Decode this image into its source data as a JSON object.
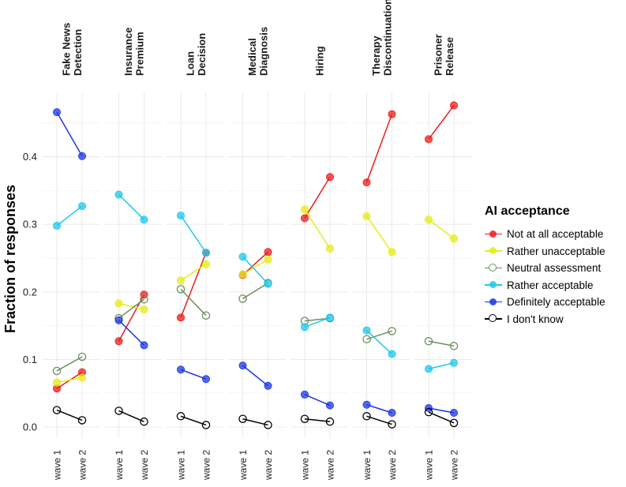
{
  "chart_data": {
    "type": "line",
    "ylabel": "Fraction of responses",
    "xlabel": "",
    "ylim": [
      0,
      0.48
    ],
    "yticks": [
      "0.0",
      "0.1",
      "0.2",
      "0.3",
      "0.4"
    ],
    "ytick_values": [
      0,
      0.1,
      0.2,
      0.3,
      0.4
    ],
    "x": [
      "wave 1",
      "wave 2"
    ],
    "grid": true,
    "legend_position": "right",
    "legend_title": "AI acceptance",
    "series": [
      {
        "name": "Not at all acceptable",
        "color": "#ee1c1c",
        "filled": true
      },
      {
        "name": "Rather unacceptable",
        "color": "#e5ec1a",
        "filled": true
      },
      {
        "name": "Neutral assessment",
        "color": "#6b8f5e",
        "filled": false
      },
      {
        "name": "Rather acceptable",
        "color": "#1dc8ef",
        "filled": true
      },
      {
        "name": "Definitely acceptable",
        "color": "#1b35e6",
        "filled": true
      },
      {
        "name": "I don't know",
        "color": "#000000",
        "filled": false
      }
    ],
    "panels": [
      {
        "title": [
          "Fake News",
          "Detection"
        ],
        "values": [
          [
            0.057,
            0.081
          ],
          [
            0.066,
            0.073
          ],
          [
            0.083,
            0.104
          ],
          [
            0.298,
            0.327
          ],
          [
            0.466,
            0.401
          ],
          [
            0.025,
            0.01
          ]
        ]
      },
      {
        "title": [
          "Insurance",
          "Premium"
        ],
        "values": [
          [
            0.127,
            0.196
          ],
          [
            0.183,
            0.174
          ],
          [
            0.161,
            0.189
          ],
          [
            0.344,
            0.307
          ],
          [
            0.158,
            0.121
          ],
          [
            0.024,
            0.008
          ]
        ]
      },
      {
        "title": [
          "Loan",
          "Decision"
        ],
        "values": [
          [
            0.162,
            0.258
          ],
          [
            0.217,
            0.241
          ],
          [
            0.204,
            0.165
          ],
          [
            0.313,
            0.258
          ],
          [
            0.085,
            0.071
          ],
          [
            0.016,
            0.003
          ]
        ]
      },
      {
        "title": [
          "Medical",
          "Diagnosis"
        ],
        "values": [
          [
            0.225,
            0.259
          ],
          [
            0.226,
            0.248
          ],
          [
            0.19,
            0.213
          ],
          [
            0.252,
            0.212
          ],
          [
            0.091,
            0.061
          ],
          [
            0.012,
            0.003
          ]
        ]
      },
      {
        "title": [
          "Hiring"
        ],
        "values": [
          [
            0.309,
            0.37
          ],
          [
            0.322,
            0.264
          ],
          [
            0.157,
            0.161
          ],
          [
            0.148,
            0.162
          ],
          [
            0.048,
            0.032
          ],
          [
            0.012,
            0.008
          ]
        ]
      },
      {
        "title": [
          "Therapy",
          "Discontinuation"
        ],
        "values": [
          [
            0.362,
            0.463
          ],
          [
            0.312,
            0.259
          ],
          [
            0.13,
            0.142
          ],
          [
            0.143,
            0.108
          ],
          [
            0.033,
            0.021
          ],
          [
            0.016,
            0.004
          ]
        ]
      },
      {
        "title": [
          "Prisoner",
          "Release"
        ],
        "values": [
          [
            0.426,
            0.476
          ],
          [
            0.307,
            0.279
          ],
          [
            0.127,
            0.12
          ],
          [
            0.086,
            0.095
          ],
          [
            0.028,
            0.021
          ],
          [
            0.022,
            0.006
          ]
        ]
      }
    ]
  }
}
